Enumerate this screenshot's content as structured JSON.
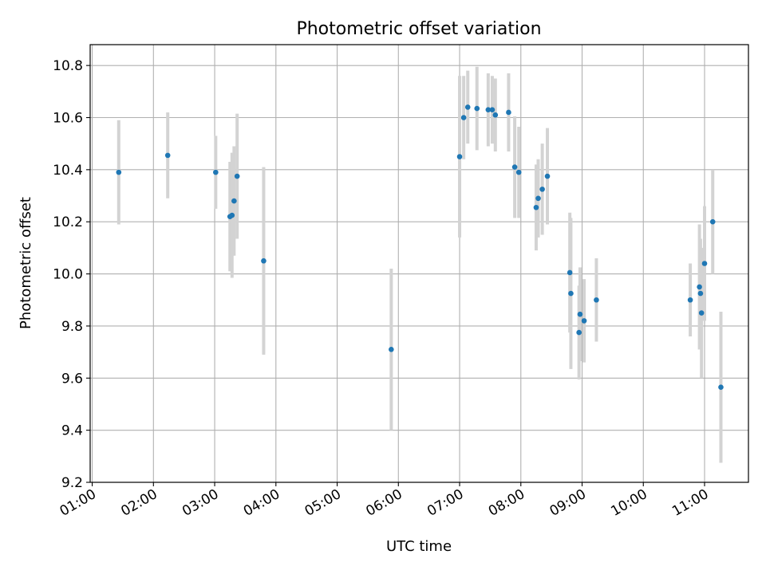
{
  "chart_data": {
    "type": "scatter",
    "title": "Photometric offset variation",
    "xlabel": "UTC time",
    "ylabel": "Photometric offset",
    "xlim": [
      "00:58",
      "11:43"
    ],
    "ylim": [
      9.2,
      10.88
    ],
    "x_ticks": [
      "01:00",
      "02:00",
      "03:00",
      "04:00",
      "05:00",
      "06:00",
      "07:00",
      "08:00",
      "09:00",
      "10:00",
      "11:00"
    ],
    "y_ticks": [
      9.2,
      9.4,
      9.6,
      9.8,
      10.0,
      10.2,
      10.4,
      10.6,
      10.8
    ],
    "grid": true,
    "marker_color": "#1f77b4",
    "errorbar_color": "#d3d3d3",
    "points": [
      {
        "time": "01:26",
        "value": 10.39,
        "err": 0.2
      },
      {
        "time": "02:14",
        "value": 10.455,
        "err": 0.165
      },
      {
        "time": "03:01",
        "value": 10.39,
        "err": 0.14
      },
      {
        "time": "03:15",
        "value": 10.22,
        "err": 0.21
      },
      {
        "time": "03:17",
        "value": 10.225,
        "err": 0.24
      },
      {
        "time": "03:19",
        "value": 10.28,
        "err": 0.21
      },
      {
        "time": "03:22",
        "value": 10.375,
        "err": 0.24
      },
      {
        "time": "03:48",
        "value": 10.05,
        "err": 0.36
      },
      {
        "time": "05:53",
        "value": 9.71,
        "err": 0.31
      },
      {
        "time": "07:00",
        "value": 10.45,
        "err": 0.31
      },
      {
        "time": "07:04",
        "value": 10.6,
        "err": 0.16
      },
      {
        "time": "07:08",
        "value": 10.64,
        "err": 0.14
      },
      {
        "time": "07:17",
        "value": 10.635,
        "err": 0.16
      },
      {
        "time": "07:28",
        "value": 10.63,
        "err": 0.14
      },
      {
        "time": "07:32",
        "value": 10.63,
        "err": 0.13
      },
      {
        "time": "07:35",
        "value": 10.61,
        "err": 0.14
      },
      {
        "time": "07:48",
        "value": 10.62,
        "err": 0.15
      },
      {
        "time": "07:54",
        "value": 10.41,
        "err": 0.195
      },
      {
        "time": "07:58",
        "value": 10.39,
        "err": 0.175
      },
      {
        "time": "08:15",
        "value": 10.255,
        "err": 0.165
      },
      {
        "time": "08:17",
        "value": 10.29,
        "err": 0.15
      },
      {
        "time": "08:21",
        "value": 10.325,
        "err": 0.175
      },
      {
        "time": "08:26",
        "value": 10.375,
        "err": 0.185
      },
      {
        "time": "08:48",
        "value": 10.005,
        "err": 0.23
      },
      {
        "time": "08:49",
        "value": 9.925,
        "err": 0.29
      },
      {
        "time": "08:57",
        "value": 9.775,
        "err": 0.18
      },
      {
        "time": "08:58",
        "value": 9.845,
        "err": 0.18
      },
      {
        "time": "09:02",
        "value": 9.82,
        "err": 0.16
      },
      {
        "time": "09:14",
        "value": 9.9,
        "err": 0.16
      },
      {
        "time": "10:46",
        "value": 9.9,
        "err": 0.14
      },
      {
        "time": "10:55",
        "value": 9.95,
        "err": 0.24
      },
      {
        "time": "10:56",
        "value": 9.925,
        "err": 0.21
      },
      {
        "time": "10:57",
        "value": 9.85,
        "err": 0.25
      },
      {
        "time": "11:00",
        "value": 10.04,
        "err": 0.22
      },
      {
        "time": "11:08",
        "value": 10.2,
        "err": 0.2
      },
      {
        "time": "11:16",
        "value": 9.565,
        "err": 0.29
      }
    ]
  }
}
